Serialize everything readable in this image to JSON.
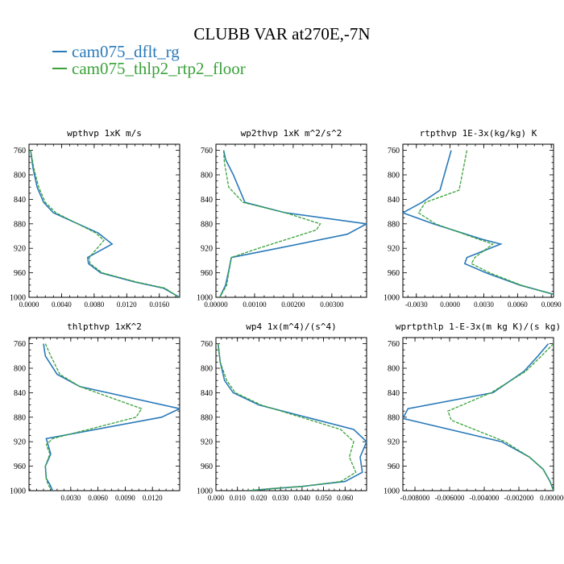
{
  "title": "CLUBB VAR at270E,-7N",
  "legend": [
    {
      "label": "cam075_dflt_rg",
      "color": "#2a7ab9",
      "dash": "solid"
    },
    {
      "label": "cam075_thlp2_rtp2_floor",
      "color": "#3aa23a",
      "dash": "dashed"
    }
  ],
  "chart_data": [
    {
      "type": "line",
      "title": "wpthvp  1xK m/s",
      "ylim": [
        1000,
        750
      ],
      "yticks": [
        760,
        800,
        840,
        880,
        920,
        960,
        1000
      ],
      "xlim": [
        0,
        0.0185
      ],
      "xticks": [
        0.0,
        0.004,
        0.008,
        0.012,
        0.016
      ],
      "xtick_labels": [
        "0.0000",
        "0.0040",
        "0.0080",
        "0.0120",
        "0.0160"
      ],
      "series": [
        {
          "name": "cam075_dflt_rg",
          "x": [
            0.0002,
            0.0005,
            0.001,
            0.0018,
            0.003,
            0.0085,
            0.0102,
            0.0072,
            0.0073,
            0.0088,
            0.013,
            0.0165,
            0.0185
          ],
          "y": [
            760,
            790,
            820,
            845,
            862,
            895,
            913,
            935,
            945,
            960,
            975,
            985,
            1000
          ]
        },
        {
          "name": "cam075_thlp2_rtp2_floor",
          "x": [
            0.0002,
            0.0006,
            0.0012,
            0.002,
            0.0033,
            0.0082,
            0.0092,
            0.0074,
            0.0075,
            0.009,
            0.0132,
            0.0167,
            0.0184
          ],
          "y": [
            760,
            790,
            820,
            845,
            862,
            895,
            907,
            935,
            945,
            960,
            975,
            985,
            1000
          ]
        }
      ]
    },
    {
      "type": "line",
      "title": "wp2thvp  1xK m^2/s^2",
      "ylim": [
        1000,
        750
      ],
      "yticks": [
        760,
        800,
        840,
        880,
        920,
        960,
        1000
      ],
      "xlim": [
        0,
        0.0039
      ],
      "xticks": [
        0.0,
        0.001,
        0.002,
        0.003
      ],
      "xtick_labels": [
        "0.00000",
        "0.00100",
        "0.00200",
        "0.00300"
      ],
      "series": [
        {
          "name": "cam075_dflt_rg",
          "x": [
            0.0002,
            0.00025,
            0.00045,
            0.00075,
            0.0018,
            0.0039,
            0.0034,
            0.0016,
            0.0004,
            0.00032,
            0.00025,
            0.0001
          ],
          "y": [
            760,
            775,
            800,
            845,
            862,
            880,
            897,
            920,
            935,
            960,
            980,
            1000
          ]
        },
        {
          "name": "cam075_thlp2_rtp2_floor",
          "x": [
            0.0002,
            0.00022,
            0.00033,
            0.0007,
            0.0018,
            0.0027,
            0.0026,
            0.0011,
            0.0004,
            0.00033,
            0.00028,
            0.0001
          ],
          "y": [
            760,
            780,
            820,
            845,
            862,
            880,
            890,
            920,
            935,
            960,
            980,
            1000
          ]
        }
      ]
    },
    {
      "type": "line",
      "title": "rtpthvp  1E-3x(kg/kg) K",
      "ylim": [
        1000,
        750
      ],
      "yticks": [
        760,
        800,
        840,
        880,
        920,
        960,
        1000
      ],
      "xlim": [
        -0.0042,
        0.0092
      ],
      "xticks": [
        -0.003,
        0.0,
        0.003,
        0.006,
        0.009
      ],
      "xtick_labels": [
        "-0.0030",
        "0.0000",
        "0.0030",
        "0.0060",
        "0.0090"
      ],
      "series": [
        {
          "name": "cam075_dflt_rg",
          "x": [
            0.0001,
            -0.0009,
            -0.0025,
            -0.0042,
            -0.0015,
            0.0028,
            0.0045,
            0.0015,
            0.0013,
            0.0032,
            0.0062,
            0.0092
          ],
          "y": [
            760,
            825,
            845,
            862,
            880,
            905,
            913,
            935,
            945,
            960,
            980,
            995
          ]
        },
        {
          "name": "cam075_thlp2_rtp2_floor",
          "x": [
            0.0015,
            0.0008,
            -0.0022,
            -0.0028,
            -0.0013,
            0.0025,
            0.0038,
            0.0022,
            0.0019,
            0.0035,
            0.0063,
            0.0091
          ],
          "y": [
            760,
            825,
            845,
            862,
            880,
            905,
            913,
            935,
            945,
            960,
            980,
            995
          ]
        }
      ]
    },
    {
      "type": "line",
      "title": "thlpthvp  1xK^2",
      "ylim": [
        1000,
        750
      ],
      "yticks": [
        760,
        800,
        840,
        880,
        920,
        960,
        1000
      ],
      "xlim": [
        -0.0016,
        0.015
      ],
      "xticks": [
        0.003,
        0.006,
        0.009,
        0.012
      ],
      "xtick_labels": [
        "0.0030",
        "0.0060",
        "0.0090",
        "0.0120"
      ],
      "series": [
        {
          "name": "cam075_dflt_rg",
          "x": [
            0.0,
            0.0002,
            0.0015,
            0.004,
            0.015,
            0.013,
            0.0003,
            0.0008,
            0.0005,
            0.0002,
            0.0003,
            0.0007,
            0.001
          ],
          "y": [
            760,
            780,
            810,
            830,
            866,
            880,
            915,
            940,
            950,
            960,
            980,
            990,
            1000
          ]
        },
        {
          "name": "cam075_thlp2_rtp2_floor",
          "x": [
            0.0002,
            0.0008,
            0.0018,
            0.004,
            0.0108,
            0.0102,
            0.001,
            0.0003,
            0.0007,
            0.0002,
            0.0003,
            0.0005,
            0.0009
          ],
          "y": [
            760,
            780,
            810,
            830,
            866,
            880,
            915,
            925,
            940,
            960,
            980,
            990,
            1000
          ]
        }
      ]
    },
    {
      "type": "line",
      "title": "wp4  1x(m^4)/(s^4)",
      "ylim": [
        1000,
        750
      ],
      "yticks": [
        760,
        800,
        840,
        880,
        920,
        960,
        1000
      ],
      "xlim": [
        0,
        0.07
      ],
      "xticks": [
        0.0,
        0.01,
        0.02,
        0.03,
        0.04,
        0.05,
        0.06
      ],
      "xtick_labels": [
        "0.000",
        "0.010",
        "0.020",
        "0.030",
        "0.040",
        "0.050",
        "0.060"
      ],
      "series": [
        {
          "name": "cam075_dflt_rg",
          "x": [
            0.001,
            0.002,
            0.004,
            0.008,
            0.02,
            0.064,
            0.07,
            0.067,
            0.068,
            0.06,
            0.04,
            0.025,
            0.015
          ],
          "y": [
            760,
            790,
            820,
            840,
            860,
            900,
            920,
            945,
            970,
            985,
            993,
            997,
            1000
          ]
        },
        {
          "name": "cam075_thlp2_rtp2_floor",
          "x": [
            0.001,
            0.002,
            0.005,
            0.009,
            0.021,
            0.058,
            0.064,
            0.062,
            0.065,
            0.058,
            0.04,
            0.025,
            0.015
          ],
          "y": [
            760,
            790,
            820,
            840,
            860,
            900,
            920,
            945,
            970,
            985,
            993,
            997,
            1000
          ]
        }
      ]
    },
    {
      "type": "line",
      "title": "wprtpthlp  1-E-3x(m kg K)/(s kg)",
      "ylim": [
        1000,
        750
      ],
      "yticks": [
        760,
        800,
        840,
        880,
        920,
        960,
        1000
      ],
      "xlim": [
        -0.0087,
        0.0
      ],
      "xticks": [
        -0.008,
        -0.006,
        -0.004,
        -0.002,
        0.0
      ],
      "xtick_labels": [
        "-0.008000",
        "-0.006000",
        "-0.004000",
        "-0.002000",
        "0.000000"
      ],
      "series": [
        {
          "name": "cam075_dflt_rg",
          "x": [
            -0.0003,
            -0.0009,
            -0.0017,
            -0.0035,
            -0.0084,
            -0.0087,
            -0.003,
            -0.0014,
            -0.0006,
            -0.0002,
            0.0
          ],
          "y": [
            760,
            780,
            805,
            840,
            866,
            882,
            920,
            945,
            965,
            985,
            1000
          ]
        },
        {
          "name": "cam075_thlp2_rtp2_floor",
          "x": [
            0.0,
            -0.0007,
            -0.0016,
            -0.0036,
            -0.0061,
            -0.0059,
            -0.0028,
            -0.0014,
            -0.0006,
            -0.0002,
            0.0
          ],
          "y": [
            760,
            780,
            805,
            840,
            870,
            885,
            920,
            945,
            965,
            985,
            1000
          ]
        }
      ]
    }
  ]
}
